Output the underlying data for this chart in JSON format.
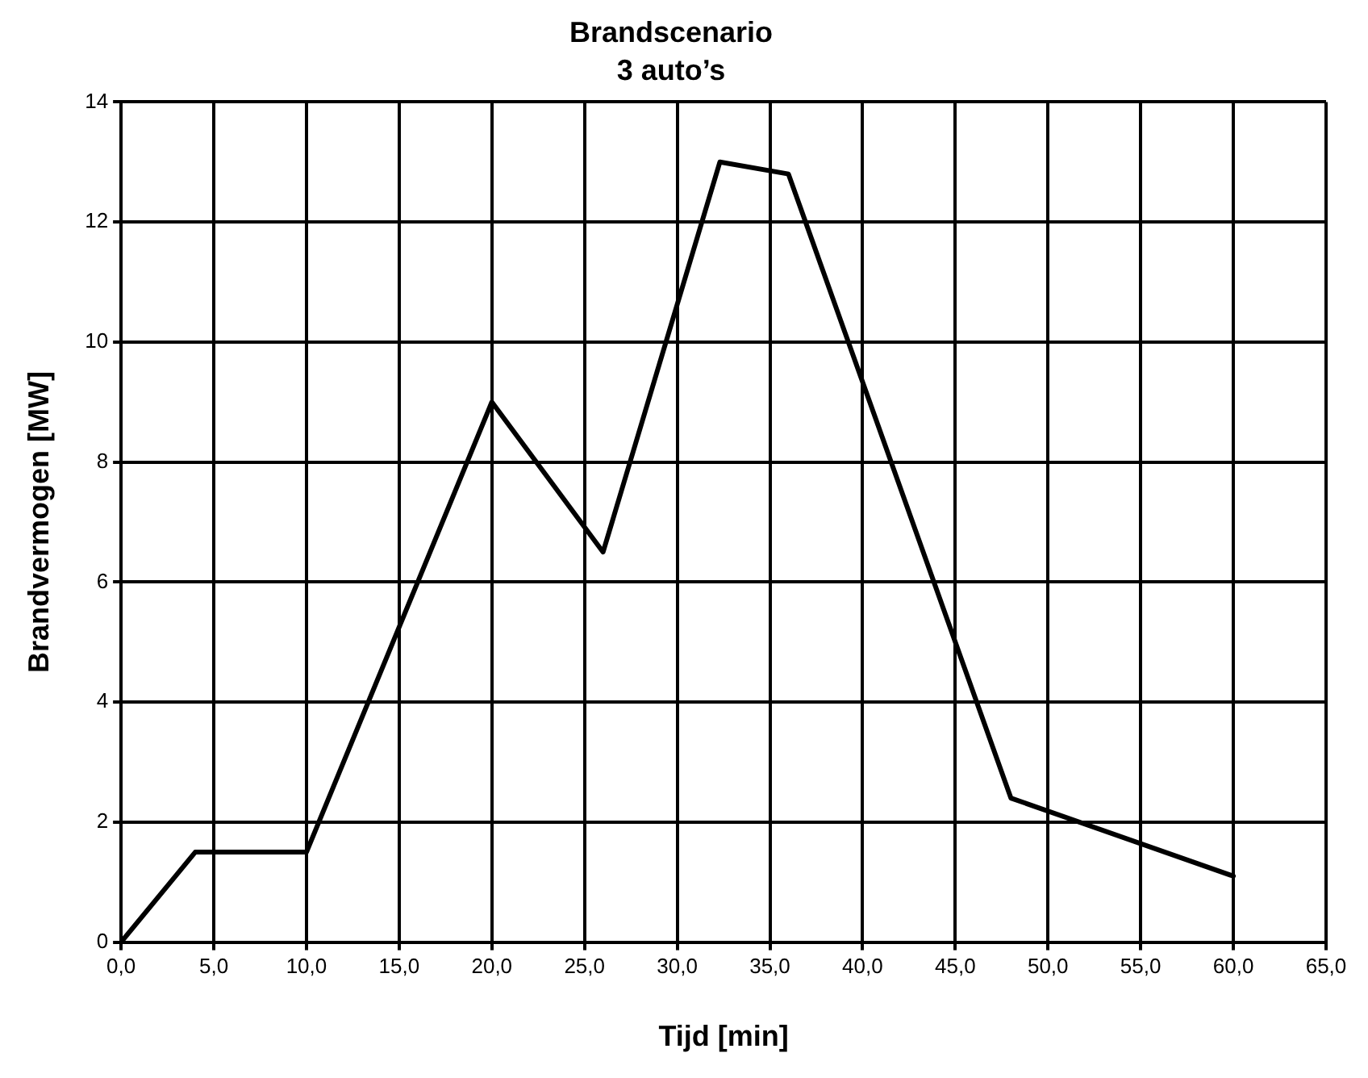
{
  "chart_data": {
    "type": "line",
    "title": "Brandscenario",
    "subtitle": "3 auto’s",
    "xlabel": "Tijd [min]",
    "ylabel": "Brandvermogen [MW]",
    "x": [
      0,
      4,
      10,
      20,
      26,
      32.3,
      36,
      48,
      60
    ],
    "series": [
      {
        "color": "#000000",
        "values": [
          0,
          1.5,
          1.5,
          9,
          6.5,
          13,
          12.8,
          2.4,
          1.1
        ]
      }
    ],
    "xlim": [
      0,
      65
    ],
    "xticks": [
      {
        "value": 0,
        "label": "0,0"
      },
      {
        "value": 5,
        "label": "5,0"
      },
      {
        "value": 10,
        "label": "10,0"
      },
      {
        "value": 15,
        "label": "15,0"
      },
      {
        "value": 20,
        "label": "20,0"
      },
      {
        "value": 25,
        "label": "25,0"
      },
      {
        "value": 30,
        "label": "30,0"
      },
      {
        "value": 35,
        "label": "35,0"
      },
      {
        "value": 40,
        "label": "40,0"
      },
      {
        "value": 45,
        "label": "45,0"
      },
      {
        "value": 50,
        "label": "50,0"
      },
      {
        "value": 55,
        "label": "55,0"
      },
      {
        "value": 60,
        "label": "60,0"
      },
      {
        "value": 65,
        "label": "65,0"
      }
    ],
    "ylim": [
      0,
      14
    ],
    "yticks": [
      0,
      2,
      4,
      6,
      8,
      10,
      12,
      14
    ],
    "grid": true,
    "legend": false,
    "marker": "none",
    "line_style": "solid"
  }
}
